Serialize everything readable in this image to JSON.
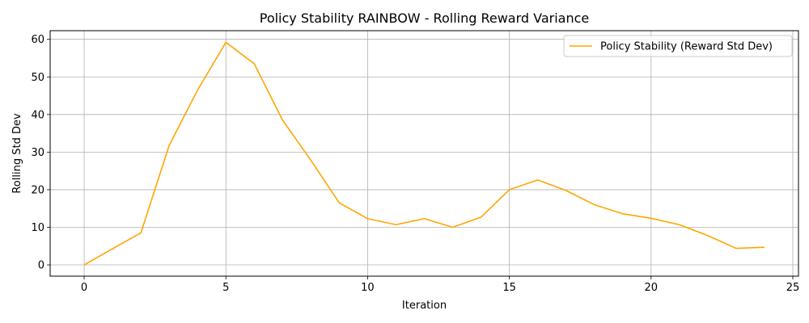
{
  "colors": {
    "series": "#ffa500",
    "grid": "#b0b0b0",
    "axis": "#000000",
    "background": "#ffffff"
  },
  "chart_data": {
    "type": "line",
    "title": "Policy Stability RAINBOW - Rolling Reward Variance",
    "xlabel": "Iteration",
    "ylabel": "Rolling Std Dev",
    "xlim": [
      -1.2,
      25.2
    ],
    "ylim": [
      -3,
      62.3
    ],
    "xticks": [
      0,
      5,
      10,
      15,
      20,
      25
    ],
    "yticks": [
      0,
      10,
      20,
      30,
      40,
      50,
      60
    ],
    "grid": true,
    "legend_position": "upper right",
    "series": [
      {
        "name": "Policy Stability (Reward Std Dev)",
        "color": "#ffa500",
        "x": [
          0,
          1,
          2,
          3,
          4,
          5,
          6,
          7,
          8,
          9,
          10,
          11,
          12,
          13,
          14,
          15,
          16,
          17,
          18,
          19,
          20,
          21,
          22,
          23,
          24
        ],
        "y": [
          0,
          4.3,
          8.5,
          31.8,
          46.5,
          59.2,
          53.5,
          38.5,
          27.8,
          16.5,
          12.3,
          10.7,
          12.3,
          10.0,
          12.7,
          20.0,
          22.6,
          19.8,
          16.0,
          13.6,
          12.4,
          10.7,
          7.8,
          4.4,
          4.7
        ]
      }
    ]
  }
}
